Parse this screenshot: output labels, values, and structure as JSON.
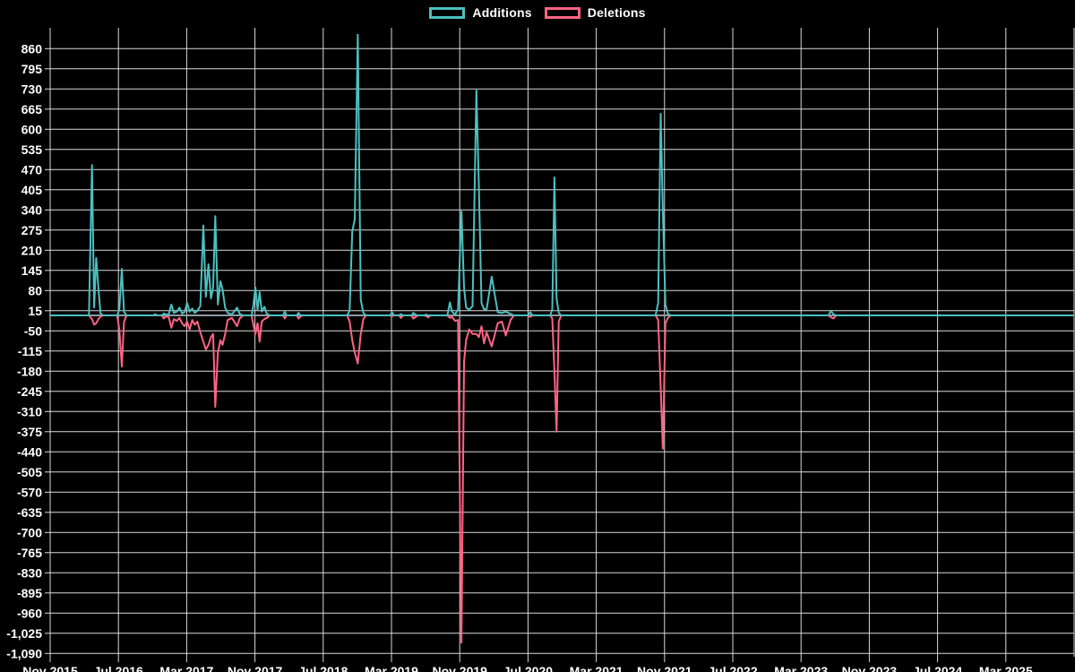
{
  "chart_data": {
    "type": "line",
    "title": "",
    "background_color": "#000000",
    "grid_color": "#d9d9d9",
    "text_color": "#ffffff",
    "zero_line_color": "#8f9aa3",
    "legend_position": "top-center",
    "legend": [
      {
        "label": "Additions",
        "color": "#4bc0c0"
      },
      {
        "label": "Deletions",
        "color": "#ff6384"
      }
    ],
    "x_axis": {
      "tick_labels": [
        "Nov 2015",
        "Jul 2016",
        "Mar 2017",
        "Nov 2017",
        "Jul 2018",
        "Mar 2019",
        "Nov 2019",
        "Jul 2020",
        "Mar 2021",
        "Nov 2021",
        "Jul 2022",
        "Mar 2023",
        "Nov 2023",
        "Jul 2024",
        "Mar 2025"
      ],
      "months_per_tick": 8,
      "start_month": "Nov 2015"
    },
    "y_axis": {
      "max": 860,
      "min": -1090,
      "step": 65,
      "tick_labels": [
        "860",
        "795",
        "730",
        "665",
        "600",
        "535",
        "470",
        "405",
        "340",
        "275",
        "210",
        "145",
        "80",
        "15",
        "-50",
        "-115",
        "-180",
        "-245",
        "-310",
        "-375",
        "-440",
        "-505",
        "-570",
        "-635",
        "-700",
        "-765",
        "-830",
        "-895",
        "-960",
        "-1,025",
        "-1,090"
      ]
    },
    "series_meta": [
      {
        "name": "Additions",
        "color": "#4bc0c0",
        "sign": "positive"
      },
      {
        "name": "Deletions",
        "color": "#ff6384",
        "sign": "negative"
      }
    ],
    "points_format": "[months_since_Nov_2015, additions, deletions]",
    "points": [
      [
        0,
        0,
        0
      ],
      [
        4.55,
        0,
        0
      ],
      [
        4.9,
        485,
        -12
      ],
      [
        5.15,
        25,
        -30
      ],
      [
        5.4,
        185,
        -25
      ],
      [
        5.65,
        90,
        -12
      ],
      [
        5.9,
        6,
        -4
      ],
      [
        6.2,
        0,
        0
      ],
      [
        7.85,
        0,
        0
      ],
      [
        8.1,
        18,
        -45
      ],
      [
        8.4,
        150,
        -165
      ],
      [
        8.65,
        12,
        -22
      ],
      [
        8.95,
        0,
        0
      ],
      [
        12.1,
        0,
        0
      ],
      [
        12.3,
        4,
        0
      ],
      [
        12.5,
        0,
        0
      ],
      [
        13.1,
        0,
        0
      ],
      [
        13.3,
        6,
        -10
      ],
      [
        13.6,
        2,
        -3
      ],
      [
        13.9,
        4,
        -6
      ],
      [
        14.2,
        35,
        -40
      ],
      [
        14.5,
        8,
        -12
      ],
      [
        14.85,
        12,
        -18
      ],
      [
        15.15,
        25,
        -8
      ],
      [
        15.45,
        6,
        -25
      ],
      [
        15.75,
        10,
        -35
      ],
      [
        16.05,
        40,
        -20
      ],
      [
        16.35,
        12,
        -45
      ],
      [
        16.65,
        22,
        -15
      ],
      [
        16.95,
        8,
        -30
      ],
      [
        17.25,
        15,
        -20
      ],
      [
        17.6,
        30,
        -55
      ],
      [
        17.95,
        290,
        -85
      ],
      [
        18.25,
        60,
        -110
      ],
      [
        18.55,
        165,
        -95
      ],
      [
        18.85,
        55,
        -70
      ],
      [
        19.1,
        90,
        -60
      ],
      [
        19.35,
        320,
        -295
      ],
      [
        19.65,
        35,
        -120
      ],
      [
        19.95,
        110,
        -80
      ],
      [
        20.2,
        85,
        -95
      ],
      [
        20.5,
        25,
        -60
      ],
      [
        20.8,
        8,
        -15
      ],
      [
        21.3,
        3,
        -8
      ],
      [
        21.9,
        25,
        -35
      ],
      [
        22.2,
        5,
        -10
      ],
      [
        22.6,
        0,
        0
      ],
      [
        23.6,
        0,
        0
      ],
      [
        23.8,
        30,
        -28
      ],
      [
        24.05,
        90,
        -60
      ],
      [
        24.3,
        18,
        -25
      ],
      [
        24.55,
        75,
        -85
      ],
      [
        24.8,
        12,
        -20
      ],
      [
        25.1,
        28,
        -12
      ],
      [
        25.4,
        5,
        -8
      ],
      [
        25.75,
        0,
        0
      ],
      [
        27.3,
        0,
        0
      ],
      [
        27.5,
        12,
        -10
      ],
      [
        27.7,
        0,
        0
      ],
      [
        28.9,
        0,
        0
      ],
      [
        29.1,
        8,
        -10
      ],
      [
        29.35,
        0,
        -3
      ],
      [
        29.6,
        0,
        0
      ],
      [
        34.8,
        0,
        0
      ],
      [
        35.1,
        15,
        -20
      ],
      [
        35.4,
        270,
        -80
      ],
      [
        35.7,
        310,
        -120
      ],
      [
        36.05,
        905,
        -155
      ],
      [
        36.4,
        50,
        -60
      ],
      [
        36.7,
        8,
        -12
      ],
      [
        37.0,
        0,
        0
      ],
      [
        39.85,
        0,
        0
      ],
      [
        40.05,
        10,
        -3
      ],
      [
        40.3,
        0,
        0
      ],
      [
        40.9,
        0,
        0
      ],
      [
        41.1,
        4,
        -8
      ],
      [
        41.35,
        0,
        0
      ],
      [
        42.35,
        0,
        0
      ],
      [
        42.55,
        8,
        -10
      ],
      [
        42.8,
        3,
        -6
      ],
      [
        43.05,
        0,
        0
      ],
      [
        43.85,
        0,
        0
      ],
      [
        44.05,
        3,
        -2
      ],
      [
        44.3,
        0,
        -6
      ],
      [
        44.55,
        0,
        0
      ],
      [
        46.55,
        0,
        0
      ],
      [
        46.85,
        42,
        -8
      ],
      [
        47.1,
        12,
        -5
      ],
      [
        47.45,
        3,
        -18
      ],
      [
        47.8,
        20,
        -15
      ],
      [
        48.2,
        335,
        -1055
      ],
      [
        48.5,
        90,
        -150
      ],
      [
        48.75,
        25,
        -80
      ],
      [
        49.1,
        18,
        -45
      ],
      [
        49.5,
        30,
        -60
      ],
      [
        49.95,
        725,
        -60
      ],
      [
        50.25,
        410,
        -70
      ],
      [
        50.55,
        40,
        -35
      ],
      [
        50.85,
        20,
        -90
      ],
      [
        51.15,
        20,
        -55
      ],
      [
        51.75,
        125,
        -100
      ],
      [
        52.45,
        10,
        -25
      ],
      [
        52.95,
        8,
        -20
      ],
      [
        53.4,
        12,
        -65
      ],
      [
        53.95,
        5,
        -15
      ],
      [
        54.35,
        0,
        0
      ],
      [
        55.95,
        0,
        0
      ],
      [
        56.25,
        10,
        -5
      ],
      [
        56.55,
        0,
        0
      ],
      [
        58.6,
        0,
        0
      ],
      [
        58.85,
        20,
        -10
      ],
      [
        59.1,
        445,
        -180
      ],
      [
        59.35,
        55,
        -375
      ],
      [
        59.6,
        8,
        -20
      ],
      [
        59.9,
        0,
        0
      ],
      [
        70.95,
        0,
        0
      ],
      [
        71.25,
        40,
        -15
      ],
      [
        71.55,
        650,
        -230
      ],
      [
        71.8,
        340,
        -430
      ],
      [
        72.1,
        35,
        -25
      ],
      [
        72.4,
        5,
        -8
      ],
      [
        72.7,
        0,
        0
      ],
      [
        91.2,
        0,
        0
      ],
      [
        91.5,
        14,
        -6
      ],
      [
        91.8,
        4,
        -10
      ],
      [
        92.1,
        0,
        0
      ],
      [
        119.8,
        0,
        0
      ]
    ]
  }
}
